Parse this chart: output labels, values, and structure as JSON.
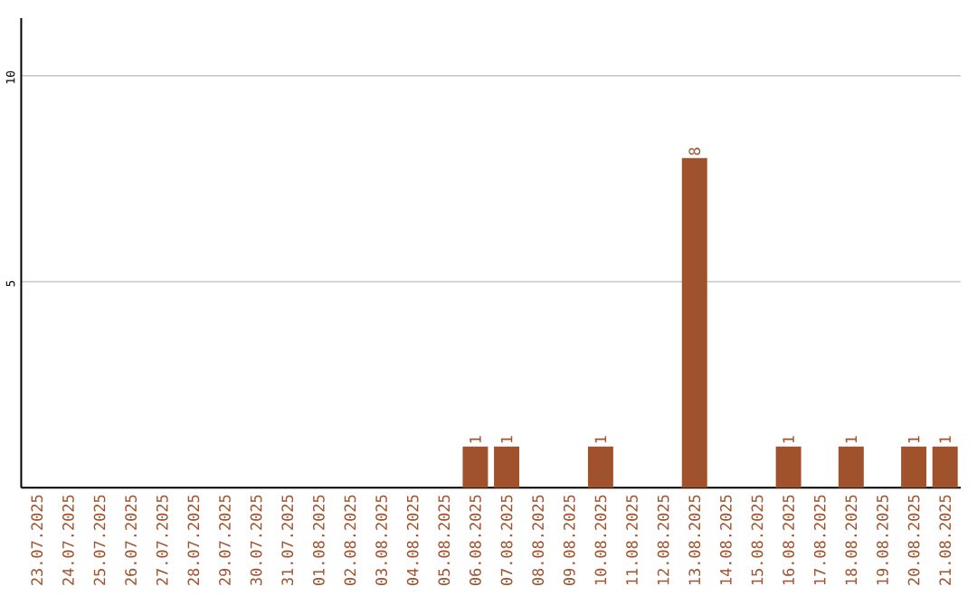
{
  "chart_data": {
    "type": "bar",
    "categories": [
      "23.07.2025",
      "24.07.2025",
      "25.07.2025",
      "26.07.2025",
      "27.07.2025",
      "28.07.2025",
      "29.07.2025",
      "30.07.2025",
      "31.07.2025",
      "01.08.2025",
      "02.08.2025",
      "03.08.2025",
      "04.08.2025",
      "05.08.2025",
      "06.08.2025",
      "07.08.2025",
      "08.08.2025",
      "09.08.2025",
      "10.08.2025",
      "11.08.2025",
      "12.08.2025",
      "13.08.2025",
      "14.08.2025",
      "15.08.2025",
      "16.08.2025",
      "17.08.2025",
      "18.08.2025",
      "19.08.2025",
      "20.08.2025",
      "21.08.2025"
    ],
    "values": [
      0,
      0,
      0,
      0,
      0,
      0,
      0,
      0,
      0,
      0,
      0,
      0,
      0,
      0,
      1,
      1,
      0,
      0,
      1,
      0,
      0,
      8,
      0,
      0,
      1,
      0,
      1,
      0,
      1,
      1
    ],
    "value_labels": [
      null,
      null,
      null,
      null,
      null,
      null,
      null,
      null,
      null,
      null,
      null,
      null,
      null,
      null,
      "1",
      "1",
      null,
      null,
      "1",
      null,
      null,
      "8",
      null,
      null,
      "1",
      null,
      "1",
      null,
      "1",
      "1"
    ],
    "color": "#a0522d",
    "ylim": [
      0,
      11.4
    ],
    "yticks": [
      5,
      10
    ],
    "grid": "y"
  }
}
